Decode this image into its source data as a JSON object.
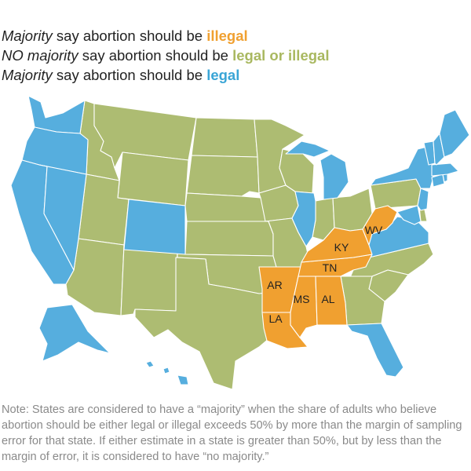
{
  "colors": {
    "illegal": "#f0a030",
    "no_majority": "#adbc72",
    "legal": "#56aede",
    "border": "#ffffff"
  },
  "title_cut": "",
  "legend": [
    {
      "lead": "Majority",
      "mid": " say abortion should be ",
      "key": "illegal",
      "category": "illegal"
    },
    {
      "lead": "NO majority",
      "mid": " say abortion should be ",
      "key": "legal or illegal",
      "category": "no_majority"
    },
    {
      "lead": "Majority",
      "mid": " say abortion should be ",
      "key": "legal",
      "category": "legal"
    }
  ],
  "map": {
    "state_labels": [
      "AR",
      "LA",
      "MS",
      "AL",
      "TN",
      "KY",
      "WV"
    ],
    "illegal_states": [
      "AR",
      "LA",
      "MS",
      "AL",
      "TN",
      "KY",
      "WV"
    ],
    "legal_states": [
      "WA",
      "OR",
      "CA",
      "NV",
      "CO",
      "IL",
      "MI",
      "FL",
      "VA",
      "MD",
      "NJ",
      "NY",
      "CT",
      "RI",
      "MA",
      "VT",
      "NH",
      "ME",
      "AK",
      "HI"
    ],
    "no_majority_states": [
      "ID",
      "MT",
      "WY",
      "UT",
      "AZ",
      "NM",
      "ND",
      "SD",
      "NE",
      "KS",
      "OK",
      "TX",
      "MN",
      "IA",
      "MO",
      "WI",
      "IN",
      "OH",
      "PA",
      "NC",
      "SC",
      "GA",
      "DE"
    ]
  },
  "note": "Note: States are considered to have a “majority” when the share of adults who believe abortion should be either legal or illegal exceeds 50% by more than the margin of sampling error for that state. If either estimate in a state is greater than 50%, but by less than the margin of error, it is considered to have “no majority.”"
}
